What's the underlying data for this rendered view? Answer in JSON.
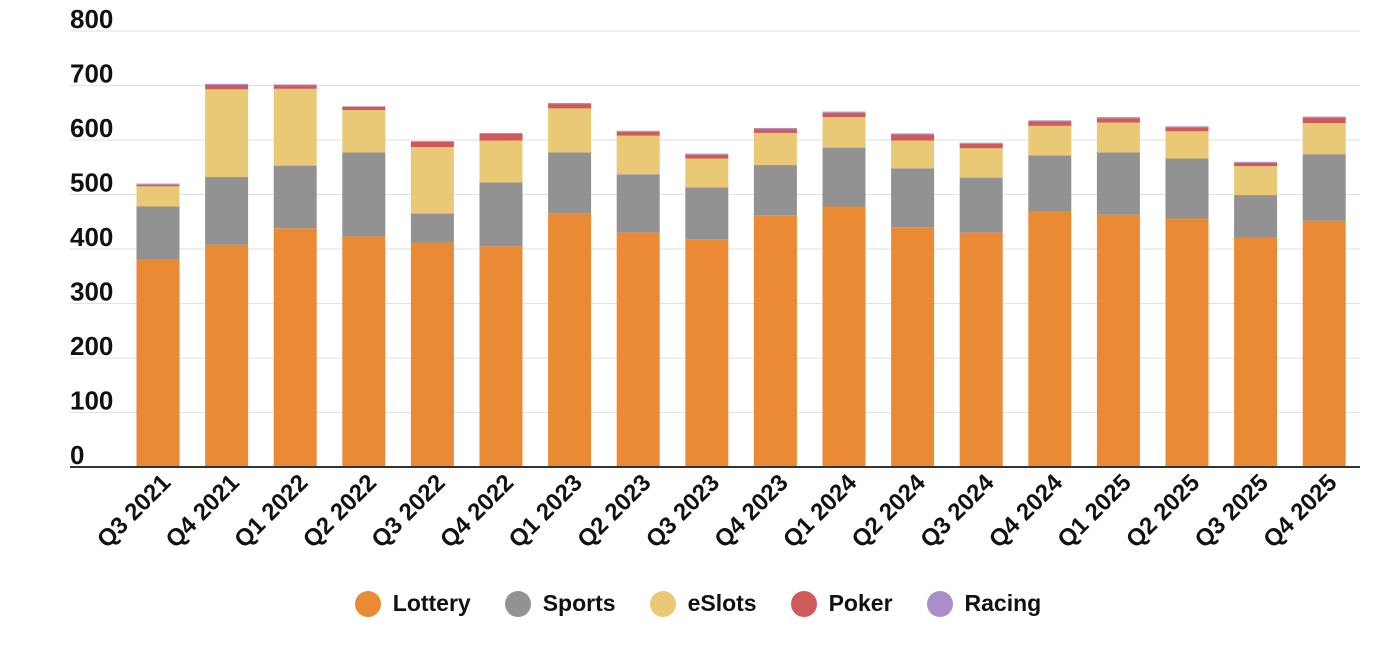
{
  "chart_data": {
    "type": "bar",
    "stacked": true,
    "title": "",
    "xlabel": "",
    "ylabel": "",
    "ylim": [
      0,
      800
    ],
    "yticks": [
      0,
      100,
      200,
      300,
      400,
      500,
      600,
      700,
      800
    ],
    "grid": true,
    "legend_position": "bottom-center",
    "categories": [
      "Q3 2021",
      "Q4 2021",
      "Q1 2022",
      "Q2 2022",
      "Q3 2022",
      "Q4 2022",
      "Q1 2023",
      "Q2 2023",
      "Q3 2023",
      "Q4 2023",
      "Q1 2024",
      "Q2 2024",
      "Q3 2024",
      "Q4 2024",
      "Q1 2025",
      "Q2 2025",
      "Q3 2025",
      "Q4 2025"
    ],
    "series": [
      {
        "name": "Lottery",
        "color": "#EB8A35",
        "values": [
          380,
          408,
          438,
          423,
          412,
          405,
          466,
          430,
          418,
          462,
          478,
          440,
          430,
          468,
          463,
          456,
          421,
          452
        ]
      },
      {
        "name": "Sports",
        "color": "#929292",
        "values": [
          98,
          124,
          115,
          154,
          53,
          117,
          111,
          107,
          95,
          92,
          108,
          108,
          101,
          104,
          114,
          110,
          78,
          122
        ]
      },
      {
        "name": "eSlots",
        "color": "#EAC976",
        "values": [
          37,
          161,
          141,
          78,
          122,
          77,
          81,
          71,
          53,
          59,
          56,
          51,
          54,
          54,
          55,
          50,
          53,
          57
        ]
      },
      {
        "name": "Poker",
        "color": "#D05A5A",
        "values": [
          3,
          8,
          6,
          6,
          10,
          12,
          8,
          7,
          7,
          7,
          8,
          11,
          8,
          8,
          8,
          7,
          6,
          10
        ]
      },
      {
        "name": "Racing",
        "color": "#A98FC6",
        "values": [
          2,
          2,
          2,
          1,
          1,
          2,
          2,
          2,
          2,
          2,
          2,
          2,
          2,
          2,
          2,
          2,
          2,
          2
        ]
      }
    ]
  }
}
